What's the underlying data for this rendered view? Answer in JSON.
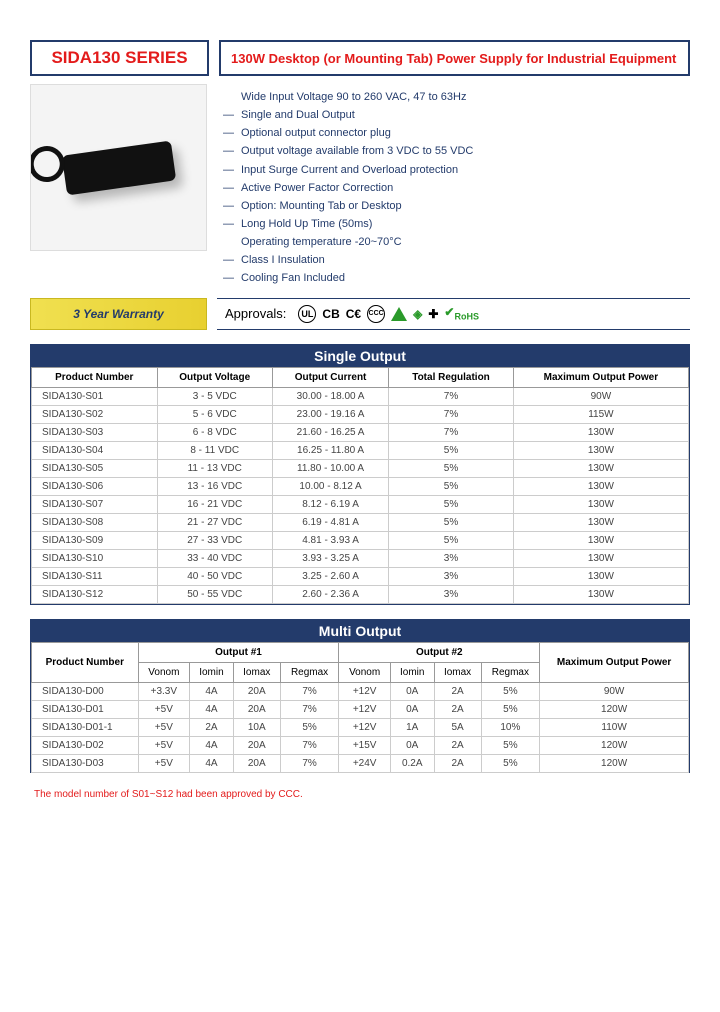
{
  "header": {
    "series": "SIDA130 SERIES",
    "title": "130W Desktop (or Mounting Tab) Power Supply for Industrial Equipment"
  },
  "features": [
    {
      "text": "Wide Input Voltage 90 to 260 VAC, 47 to 63Hz",
      "bullet": false
    },
    {
      "text": "Single and Dual Output",
      "bullet": true
    },
    {
      "text": "Optional output connector plug",
      "bullet": true
    },
    {
      "text": "Output voltage available from 3 VDC to 55 VDC",
      "bullet": true
    },
    {
      "text": "Input Surge Current and Overload protection",
      "bullet": true
    },
    {
      "text": "Active Power Factor Correction",
      "bullet": true
    },
    {
      "text": "Option: Mounting Tab or Desktop",
      "bullet": true
    },
    {
      "text": "Long Hold Up Time (50ms)",
      "bullet": true
    },
    {
      "text": "Operating temperature -20~70°C",
      "bullet": false
    },
    {
      "text": "Class I Insulation",
      "bullet": true
    },
    {
      "text": "Cooling Fan Included",
      "bullet": true
    }
  ],
  "warranty": "3 Year Warranty",
  "approvals": {
    "label": "Approvals:",
    "marks": [
      "UL",
      "CB",
      "CE",
      "CCC",
      "△",
      "◇",
      "✝",
      "RoHS"
    ]
  },
  "single": {
    "title": "Single Output",
    "columns": [
      "Product Number",
      "Output Voltage",
      "Output Current",
      "Total Regulation",
      "Maximum Output Power"
    ],
    "rows": [
      [
        "SIDA130-S01",
        "3 - 5 VDC",
        "30.00 - 18.00 A",
        "7%",
        "90W"
      ],
      [
        "SIDA130-S02",
        "5 - 6 VDC",
        "23.00 - 19.16 A",
        "7%",
        "115W"
      ],
      [
        "SIDA130-S03",
        "6 - 8 VDC",
        "21.60 - 16.25 A",
        "7%",
        "130W"
      ],
      [
        "SIDA130-S04",
        "8 - 11 VDC",
        "16.25 - 11.80 A",
        "5%",
        "130W"
      ],
      [
        "SIDA130-S05",
        "11 - 13 VDC",
        "11.80 - 10.00 A",
        "5%",
        "130W"
      ],
      [
        "SIDA130-S06",
        "13 - 16 VDC",
        "10.00 - 8.12 A",
        "5%",
        "130W"
      ],
      [
        "SIDA130-S07",
        "16 - 21 VDC",
        "8.12 - 6.19 A",
        "5%",
        "130W"
      ],
      [
        "SIDA130-S08",
        "21 - 27 VDC",
        "6.19 - 4.81 A",
        "5%",
        "130W"
      ],
      [
        "SIDA130-S09",
        "27 - 33 VDC",
        "4.81 - 3.93 A",
        "5%",
        "130W"
      ],
      [
        "SIDA130-S10",
        "33 - 40 VDC",
        "3.93 - 3.25 A",
        "3%",
        "130W"
      ],
      [
        "SIDA130-S11",
        "40 - 50 VDC",
        "3.25 - 2.60 A",
        "3%",
        "130W"
      ],
      [
        "SIDA130-S12",
        "50 - 55 VDC",
        "2.60 - 2.36 A",
        "3%",
        "130W"
      ]
    ]
  },
  "multi": {
    "title": "Multi Output",
    "header_groups": [
      "Product Number",
      "Output #1",
      "Output #2",
      "Maximum Output Power"
    ],
    "sub_cols": [
      "Vonom",
      "Iomin",
      "Iomax",
      "Regmax",
      "Vonom",
      "Iomin",
      "Iomax",
      "Regmax"
    ],
    "rows": [
      [
        "SIDA130-D00",
        "+3.3V",
        "4A",
        "20A",
        "7%",
        "+12V",
        "0A",
        "2A",
        "5%",
        "90W"
      ],
      [
        "SIDA130-D01",
        "+5V",
        "4A",
        "20A",
        "7%",
        "+12V",
        "0A",
        "2A",
        "5%",
        "120W"
      ],
      [
        "SIDA130-D01-1",
        "+5V",
        "2A",
        "10A",
        "5%",
        "+12V",
        "1A",
        "5A",
        "10%",
        "110W"
      ],
      [
        "SIDA130-D02",
        "+5V",
        "4A",
        "20A",
        "7%",
        "+15V",
        "0A",
        "2A",
        "5%",
        "120W"
      ],
      [
        "SIDA130-D03",
        "+5V",
        "4A",
        "20A",
        "7%",
        "+24V",
        "0.2A",
        "2A",
        "5%",
        "120W"
      ]
    ],
    "footnote": "The model number of S01~S12 had been approved by CCC."
  },
  "colors": {
    "navy": "#233b6b",
    "red": "#e31b1b",
    "green": "#2a9a2a",
    "yellow1": "#f0e050",
    "yellow2": "#e8d030"
  }
}
